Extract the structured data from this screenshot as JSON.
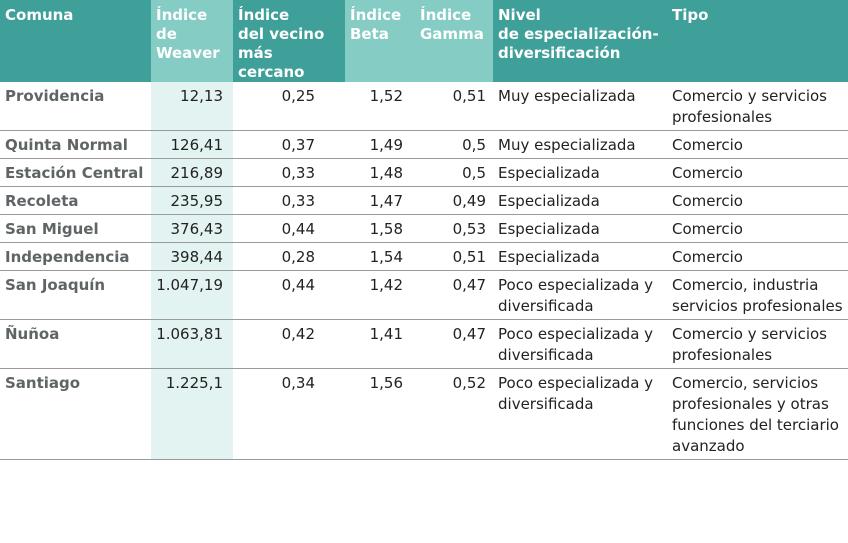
{
  "table": {
    "headers": [
      "Comuna",
      "Índice de Weaver",
      "Índice del vecino más cercano",
      "Índice Beta",
      "Índice Gamma",
      "Nivel de especialización-diversificación",
      "Tipo"
    ],
    "header_lines": [
      [
        "Comuna"
      ],
      [
        "Índice",
        "de",
        "Weaver"
      ],
      [
        "Índice",
        "del vecino",
        "más cercano"
      ],
      [
        "Índice",
        "Beta"
      ],
      [
        "Índice",
        "Gamma"
      ],
      [
        "Nivel",
        "de especialización-",
        "diversificación"
      ],
      [
        "Tipo"
      ]
    ],
    "rows": [
      {
        "comuna": "Providencia",
        "weaver": "12,13",
        "vecino": "0,25",
        "beta": "1,52",
        "gamma": "0,51",
        "nivel": "Muy especializada",
        "tipo": "Comercio y servicios profesionales"
      },
      {
        "comuna": "Quinta Normal",
        "weaver": "126,41",
        "vecino": "0,37",
        "beta": "1,49",
        "gamma": "0,5",
        "nivel": "Muy especializada",
        "tipo": "Comercio"
      },
      {
        "comuna": "Estación Central",
        "weaver": "216,89",
        "vecino": "0,33",
        "beta": "1,48",
        "gamma": "0,5",
        "nivel": "Especializada",
        "tipo": "Comercio"
      },
      {
        "comuna": "Recoleta",
        "weaver": "235,95",
        "vecino": "0,33",
        "beta": "1,47",
        "gamma": "0,49",
        "nivel": "Especializada",
        "tipo": "Comercio"
      },
      {
        "comuna": "San Miguel",
        "weaver": "376,43",
        "vecino": "0,44",
        "beta": "1,58",
        "gamma": "0,53",
        "nivel": "Especializada",
        "tipo": "Comercio"
      },
      {
        "comuna": "Independencia",
        "weaver": "398,44",
        "vecino": "0,28",
        "beta": "1,54",
        "gamma": "0,51",
        "nivel": "Especializada",
        "tipo": "Comercio"
      },
      {
        "comuna": "San Joaquín",
        "weaver": "1.047,19",
        "vecino": "0,44",
        "beta": "1,42",
        "gamma": "0,47",
        "nivel": "Poco especializada y diversificada",
        "tipo": "Comercio, industria servicios profesionales"
      },
      {
        "comuna": "Ñuñoa",
        "weaver": "1.063,81",
        "vecino": "0,42",
        "beta": "1,41",
        "gamma": "0,47",
        "nivel": "Poco especializada y diversificada",
        "tipo": "Comercio y servicios profesionales"
      },
      {
        "comuna": "Santiago",
        "weaver": "1.225,1",
        "vecino": "0,34",
        "beta": "1,56",
        "gamma": "0,52",
        "nivel": "Poco especializada y diversificada",
        "tipo": "Comercio, servicios profesionales y otras funciones del terciario avanzado"
      }
    ]
  },
  "colors": {
    "header_dark": "#3f9f99",
    "header_light": "#85ccc4",
    "weaver_column_bg": "#e3f3f1",
    "row_divider": "#9a9a9a"
  }
}
